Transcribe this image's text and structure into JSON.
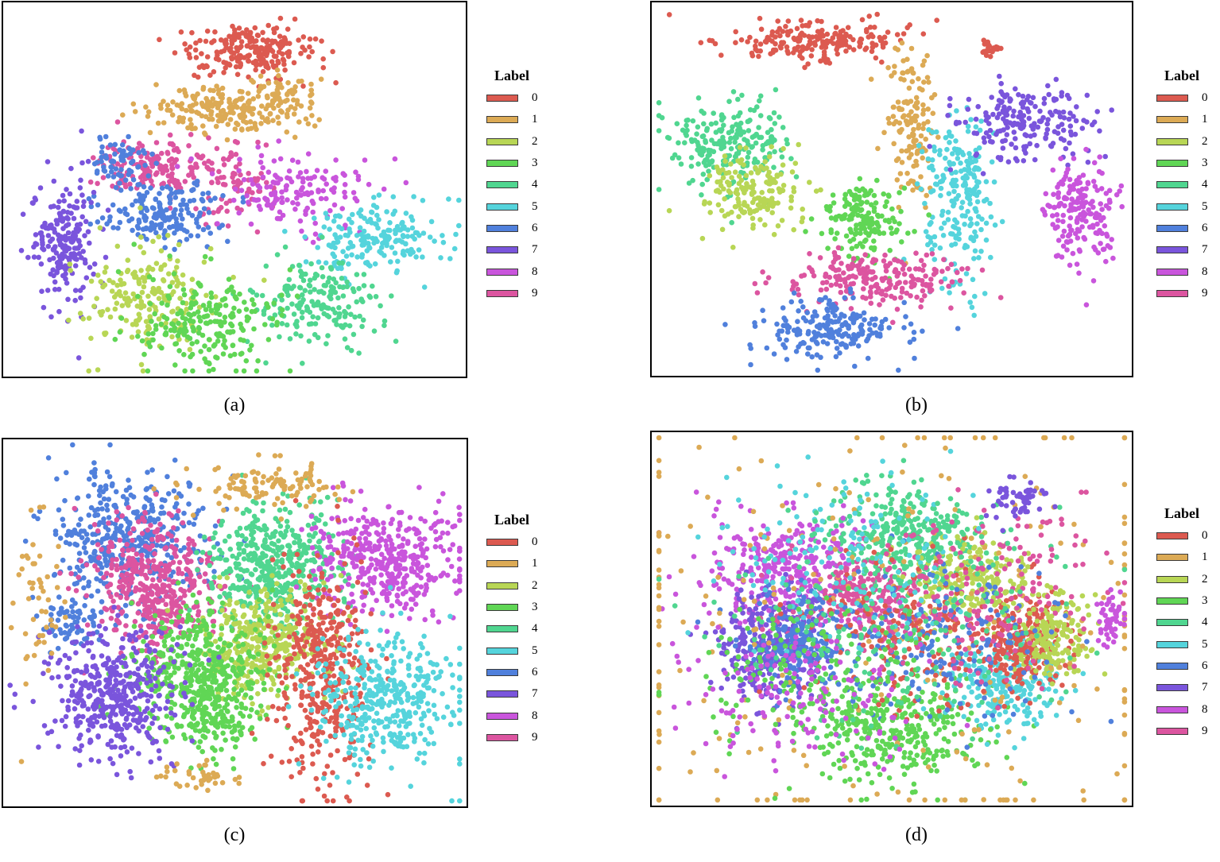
{
  "legend": {
    "title": "Label",
    "labels": [
      "0",
      "1",
      "2",
      "3",
      "4",
      "5",
      "6",
      "7",
      "8",
      "9"
    ],
    "colors": [
      "#dc5a50",
      "#dcaa55",
      "#b8d655",
      "#60d655",
      "#50d690",
      "#55d4dc",
      "#5080dc",
      "#7a55dc",
      "#c955dc",
      "#dc55a0"
    ]
  },
  "captions": [
    "(a)",
    "(b)",
    "(c)",
    "(d)"
  ],
  "chart_data": [
    {
      "type": "scatter",
      "panel": "a",
      "title": "",
      "xlabel": "",
      "ylabel": "",
      "grid": false,
      "legend_title": "Label",
      "legend_placement": "right",
      "clusters": [
        {
          "label": "0",
          "cx": 0.53,
          "cy": 0.13,
          "sx": 0.07,
          "sy": 0.035,
          "n": 220
        },
        {
          "label": "1",
          "cx": 0.47,
          "cy": 0.29,
          "sx": 0.08,
          "sy": 0.03,
          "n": 180
        },
        {
          "label": "1",
          "cx": 0.6,
          "cy": 0.26,
          "sx": 0.04,
          "sy": 0.03,
          "n": 70
        },
        {
          "label": "9",
          "cx": 0.33,
          "cy": 0.44,
          "sx": 0.07,
          "sy": 0.04,
          "n": 170
        },
        {
          "label": "9",
          "cx": 0.5,
          "cy": 0.49,
          "sx": 0.05,
          "sy": 0.05,
          "n": 70
        },
        {
          "label": "6",
          "cx": 0.25,
          "cy": 0.43,
          "sx": 0.03,
          "sy": 0.035,
          "n": 70
        },
        {
          "label": "6",
          "cx": 0.35,
          "cy": 0.56,
          "sx": 0.07,
          "sy": 0.04,
          "n": 170
        },
        {
          "label": "7",
          "cx": 0.13,
          "cy": 0.64,
          "sx": 0.035,
          "sy": 0.09,
          "n": 200
        },
        {
          "label": "8",
          "cx": 0.64,
          "cy": 0.5,
          "sx": 0.07,
          "sy": 0.05,
          "n": 150
        },
        {
          "label": "5",
          "cx": 0.8,
          "cy": 0.63,
          "sx": 0.08,
          "sy": 0.05,
          "n": 190
        },
        {
          "label": "4",
          "cx": 0.67,
          "cy": 0.8,
          "sx": 0.07,
          "sy": 0.06,
          "n": 190
        },
        {
          "label": "2",
          "cx": 0.32,
          "cy": 0.78,
          "sx": 0.07,
          "sy": 0.07,
          "n": 200
        },
        {
          "label": "3",
          "cx": 0.43,
          "cy": 0.85,
          "sx": 0.08,
          "sy": 0.07,
          "n": 220
        }
      ]
    },
    {
      "type": "scatter",
      "panel": "b",
      "title": "",
      "xlabel": "",
      "ylabel": "",
      "grid": false,
      "legend_title": "Label",
      "legend_placement": "right",
      "clusters": [
        {
          "label": "0",
          "cx": 0.33,
          "cy": 0.1,
          "sx": 0.09,
          "sy": 0.025,
          "n": 200
        },
        {
          "label": "0",
          "cx": 0.7,
          "cy": 0.12,
          "sx": 0.01,
          "sy": 0.012,
          "n": 20
        },
        {
          "label": "1",
          "cx": 0.54,
          "cy": 0.33,
          "sx": 0.025,
          "sy": 0.1,
          "n": 140
        },
        {
          "label": "4",
          "cx": 0.16,
          "cy": 0.38,
          "sx": 0.07,
          "sy": 0.06,
          "n": 220
        },
        {
          "label": "2",
          "cx": 0.21,
          "cy": 0.5,
          "sx": 0.05,
          "sy": 0.05,
          "n": 170
        },
        {
          "label": "5",
          "cx": 0.64,
          "cy": 0.52,
          "sx": 0.04,
          "sy": 0.12,
          "n": 220
        },
        {
          "label": "7",
          "cx": 0.78,
          "cy": 0.32,
          "sx": 0.07,
          "sy": 0.05,
          "n": 200
        },
        {
          "label": "8",
          "cx": 0.89,
          "cy": 0.57,
          "sx": 0.04,
          "sy": 0.07,
          "n": 180
        },
        {
          "label": "3",
          "cx": 0.44,
          "cy": 0.58,
          "sx": 0.045,
          "sy": 0.05,
          "n": 160
        },
        {
          "label": "9",
          "cx": 0.47,
          "cy": 0.74,
          "sx": 0.09,
          "sy": 0.035,
          "n": 210
        },
        {
          "label": "6",
          "cx": 0.37,
          "cy": 0.88,
          "sx": 0.08,
          "sy": 0.045,
          "n": 200
        }
      ]
    },
    {
      "type": "scatter",
      "panel": "c",
      "title": "",
      "xlabel": "",
      "ylabel": "",
      "grid": false,
      "legend_title": "Label",
      "legend_placement": "right",
      "clusters": [
        {
          "label": "6",
          "cx": 0.27,
          "cy": 0.28,
          "sx": 0.08,
          "sy": 0.09,
          "n": 420
        },
        {
          "label": "6",
          "cx": 0.15,
          "cy": 0.5,
          "sx": 0.03,
          "sy": 0.035,
          "n": 70
        },
        {
          "label": "9",
          "cx": 0.33,
          "cy": 0.4,
          "sx": 0.07,
          "sy": 0.09,
          "n": 430
        },
        {
          "label": "4",
          "cx": 0.59,
          "cy": 0.34,
          "sx": 0.07,
          "sy": 0.08,
          "n": 450
        },
        {
          "label": "8",
          "cx": 0.83,
          "cy": 0.33,
          "sx": 0.08,
          "sy": 0.07,
          "n": 400
        },
        {
          "label": "1",
          "cx": 0.58,
          "cy": 0.13,
          "sx": 0.08,
          "sy": 0.035,
          "n": 110
        },
        {
          "label": "2",
          "cx": 0.56,
          "cy": 0.55,
          "sx": 0.07,
          "sy": 0.07,
          "n": 350
        },
        {
          "label": "3",
          "cx": 0.42,
          "cy": 0.62,
          "sx": 0.07,
          "sy": 0.08,
          "n": 380
        },
        {
          "label": "3",
          "cx": 0.45,
          "cy": 0.76,
          "sx": 0.05,
          "sy": 0.05,
          "n": 160
        },
        {
          "label": "0",
          "cx": 0.69,
          "cy": 0.64,
          "sx": 0.05,
          "sy": 0.15,
          "n": 400
        },
        {
          "label": "5",
          "cx": 0.83,
          "cy": 0.7,
          "sx": 0.08,
          "sy": 0.09,
          "n": 380
        },
        {
          "label": "7",
          "cx": 0.24,
          "cy": 0.69,
          "sx": 0.07,
          "sy": 0.09,
          "n": 420
        },
        {
          "label": "1",
          "cx": 0.08,
          "cy": 0.45,
          "sx": 0.025,
          "sy": 0.12,
          "n": 50
        },
        {
          "label": "1",
          "cx": 0.42,
          "cy": 0.92,
          "sx": 0.04,
          "sy": 0.02,
          "n": 40
        }
      ]
    },
    {
      "type": "scatter",
      "panel": "d",
      "title": "",
      "xlabel": "",
      "ylabel": "",
      "grid": false,
      "legend_title": "Label",
      "legend_placement": "right",
      "clusters": [
        {
          "label": "4",
          "cx": 0.53,
          "cy": 0.28,
          "sx": 0.09,
          "sy": 0.07,
          "n": 320
        },
        {
          "label": "8",
          "cx": 0.27,
          "cy": 0.36,
          "sx": 0.08,
          "sy": 0.07,
          "n": 300
        },
        {
          "label": "7",
          "cx": 0.24,
          "cy": 0.58,
          "sx": 0.06,
          "sy": 0.08,
          "n": 300
        },
        {
          "label": "3",
          "cx": 0.52,
          "cy": 0.8,
          "sx": 0.09,
          "sy": 0.07,
          "n": 320
        },
        {
          "label": "5",
          "cx": 0.73,
          "cy": 0.67,
          "sx": 0.06,
          "sy": 0.06,
          "n": 250
        },
        {
          "label": "0",
          "cx": 0.78,
          "cy": 0.55,
          "sx": 0.04,
          "sy": 0.07,
          "n": 200
        },
        {
          "label": "2",
          "cx": 0.83,
          "cy": 0.55,
          "sx": 0.04,
          "sy": 0.06,
          "n": 180
        },
        {
          "label": "9",
          "cx": 0.45,
          "cy": 0.45,
          "sx": 0.07,
          "sy": 0.06,
          "n": 250
        },
        {
          "label": "6",
          "cx": 0.31,
          "cy": 0.55,
          "sx": 0.05,
          "sy": 0.06,
          "n": 200
        },
        {
          "label": "2",
          "cx": 0.66,
          "cy": 0.4,
          "sx": 0.06,
          "sy": 0.06,
          "n": 220
        },
        {
          "label": "1",
          "cx": 0.5,
          "cy": 0.5,
          "sx": 0.35,
          "sy": 0.35,
          "n": 280
        },
        {
          "label": "0",
          "cx": 0.55,
          "cy": 0.55,
          "sx": 0.12,
          "sy": 0.1,
          "n": 200
        },
        {
          "label": "6",
          "cx": 0.6,
          "cy": 0.55,
          "sx": 0.12,
          "sy": 0.1,
          "n": 200
        },
        {
          "label": "9",
          "cx": 0.7,
          "cy": 0.45,
          "sx": 0.12,
          "sy": 0.12,
          "n": 180
        },
        {
          "label": "5",
          "cx": 0.4,
          "cy": 0.35,
          "sx": 0.14,
          "sy": 0.12,
          "n": 160
        },
        {
          "label": "3",
          "cx": 0.35,
          "cy": 0.65,
          "sx": 0.12,
          "sy": 0.1,
          "n": 180
        },
        {
          "label": "7",
          "cx": 0.76,
          "cy": 0.18,
          "sx": 0.03,
          "sy": 0.025,
          "n": 60
        },
        {
          "label": "8",
          "cx": 0.96,
          "cy": 0.5,
          "sx": 0.015,
          "sy": 0.04,
          "n": 50
        },
        {
          "label": "4",
          "cx": 0.5,
          "cy": 0.5,
          "sx": 0.18,
          "sy": 0.15,
          "n": 200
        },
        {
          "label": "8",
          "cx": 0.3,
          "cy": 0.7,
          "sx": 0.12,
          "sy": 0.1,
          "n": 150
        }
      ]
    }
  ]
}
